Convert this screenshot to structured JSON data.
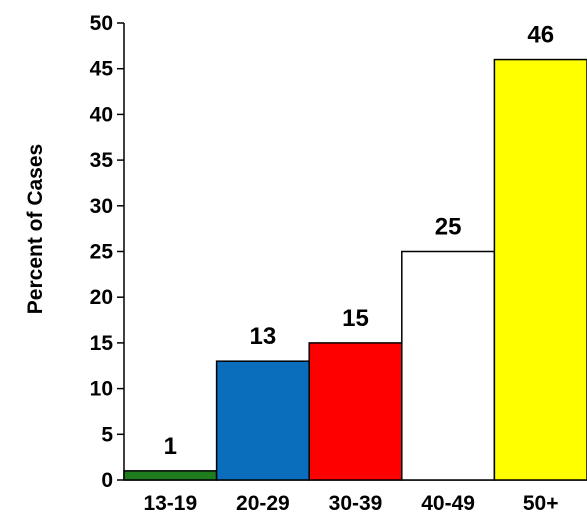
{
  "chart_data": {
    "type": "bar",
    "categories": [
      "13-19",
      "20-29",
      "30-39",
      "40-49",
      "50+"
    ],
    "values": [
      1,
      13,
      15,
      25,
      46
    ],
    "data_labels": [
      "1",
      "13",
      "15",
      "25",
      "46"
    ],
    "bar_colors": [
      "#1e7b1e",
      "#0a6ebd",
      "#ff0000",
      "#ffffff",
      "#ffff00"
    ],
    "ylabel": "Percent of Cases",
    "xlabel": "",
    "ylim": [
      0,
      50
    ],
    "yticks": [
      "0",
      "5",
      "10",
      "15",
      "20",
      "25",
      "30",
      "35",
      "40",
      "45",
      "50"
    ],
    "grid": false,
    "legend": "none"
  }
}
